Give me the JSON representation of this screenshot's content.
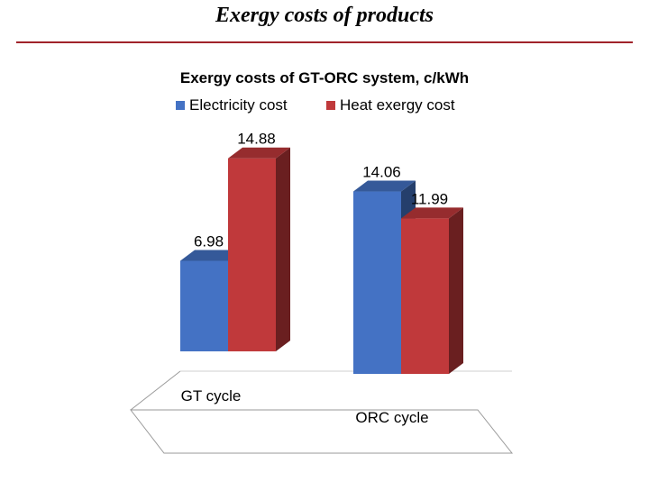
{
  "slide": {
    "title": "Exergy costs of products"
  },
  "colors": {
    "rule": "#a0232a",
    "electricity": "#4472c4",
    "heat": "#c0393b"
  },
  "chart_data": {
    "type": "bar",
    "title": "Exergy costs of GT-ORC system, c/kWh",
    "categories": [
      "GT cycle",
      "ORC cycle"
    ],
    "series": [
      {
        "name": "Electricity cost",
        "values": [
          6.98,
          14.06
        ],
        "color": "#4472c4"
      },
      {
        "name": "Heat exergy cost",
        "values": [
          14.88,
          11.99
        ],
        "color": "#c0393b"
      }
    ],
    "ylim": [
      0,
      16
    ],
    "legend": "top",
    "grid": false,
    "xlabel": "",
    "ylabel": ""
  }
}
